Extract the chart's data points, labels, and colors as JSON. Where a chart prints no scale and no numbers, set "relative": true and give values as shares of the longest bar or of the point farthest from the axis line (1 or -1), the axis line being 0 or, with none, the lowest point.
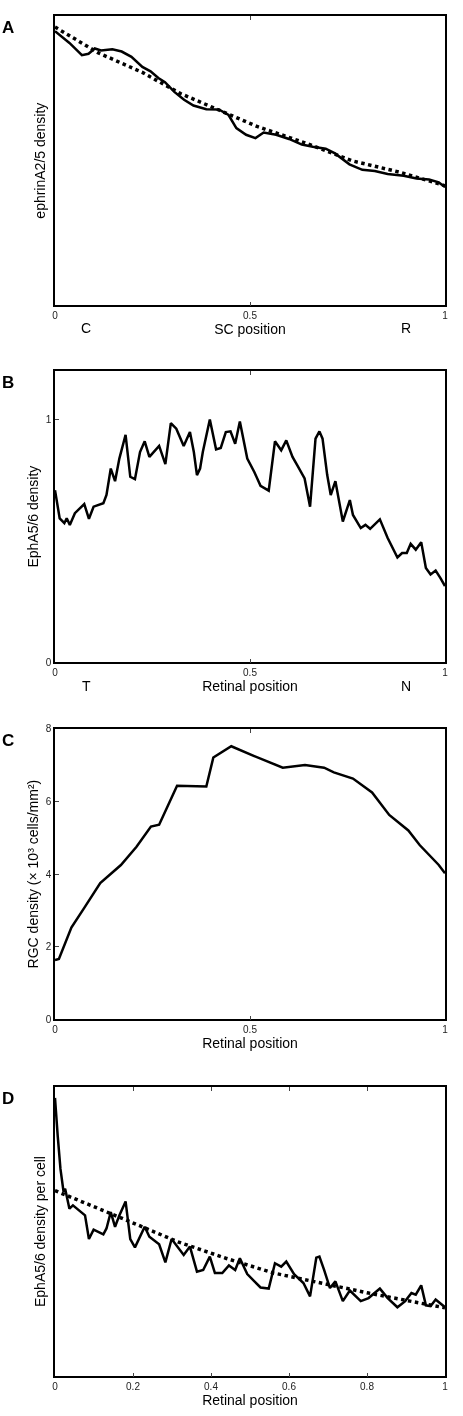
{
  "chart_data": [
    {
      "type": "line",
      "title": "A",
      "xlabel": "SC position",
      "ylabel": "ephrinA2/5 density",
      "relative": true,
      "xlim": [
        0,
        1
      ],
      "xticks": [
        0,
        0.5,
        1
      ],
      "annotations": [
        "C",
        "R"
      ],
      "series": [
        {
          "color": "#000000",
          "line_style": "solid",
          "x": [
            0,
            0.037,
            0.069,
            0.086,
            0.102,
            0.118,
            0.147,
            0.171,
            0.196,
            0.224,
            0.245,
            0.265,
            0.282,
            0.306,
            0.331,
            0.355,
            0.388,
            0.42,
            0.445,
            0.465,
            0.49,
            0.514,
            0.535,
            0.567,
            0.6,
            0.633,
            0.661,
            0.694,
            0.718,
            0.755,
            0.788,
            0.82,
            0.853,
            0.894,
            0.927,
            0.959,
            0.984,
            1.0
          ],
          "values": [
            0.985,
            0.943,
            0.899,
            0.904,
            0.923,
            0.916,
            0.92,
            0.912,
            0.893,
            0.857,
            0.841,
            0.817,
            0.802,
            0.767,
            0.739,
            0.718,
            0.705,
            0.704,
            0.684,
            0.637,
            0.613,
            0.601,
            0.621,
            0.613,
            0.598,
            0.578,
            0.57,
            0.563,
            0.546,
            0.507,
            0.487,
            0.483,
            0.472,
            0.466,
            0.456,
            0.452,
            0.442,
            0.425
          ]
        },
        {
          "color": "#000000",
          "line_style": "dotted",
          "x": [
            0,
            0.11,
            0.224,
            0.322,
            0.42,
            0.518,
            0.641,
            0.763,
            0.886,
            1.0
          ],
          "values": [
            1.0,
            0.908,
            0.837,
            0.761,
            0.702,
            0.643,
            0.584,
            0.519,
            0.478,
            0.43
          ]
        }
      ]
    },
    {
      "type": "line",
      "title": "B",
      "xlabel": "Retinal position",
      "ylabel": "EphA5/6 density",
      "xlim": [
        0,
        1
      ],
      "xticks": [
        0,
        0.5,
        1
      ],
      "ylim": [
        0,
        1.2
      ],
      "yticks": [
        0,
        1
      ],
      "annotations": [
        "T",
        "N"
      ],
      "series": [
        {
          "color": "#000000",
          "line_style": "solid",
          "x": [
            0,
            0.012,
            0.024,
            0.03,
            0.038,
            0.051,
            0.075,
            0.087,
            0.099,
            0.124,
            0.132,
            0.143,
            0.154,
            0.165,
            0.181,
            0.193,
            0.205,
            0.218,
            0.23,
            0.242,
            0.267,
            0.283,
            0.297,
            0.311,
            0.33,
            0.346,
            0.356,
            0.364,
            0.372,
            0.379,
            0.397,
            0.413,
            0.425,
            0.438,
            0.45,
            0.462,
            0.474,
            0.493,
            0.511,
            0.527,
            0.548,
            0.564,
            0.58,
            0.593,
            0.609,
            0.621,
            0.64,
            0.654,
            0.668,
            0.678,
            0.686,
            0.698,
            0.707,
            0.719,
            0.738,
            0.756,
            0.764,
            0.784,
            0.796,
            0.808,
            0.833,
            0.853,
            0.878,
            0.89,
            0.902,
            0.912,
            0.925,
            0.939,
            0.951,
            0.963,
            0.976,
            0.988,
            1.0
          ],
          "values": [
            0.709,
            0.593,
            0.573,
            0.593,
            0.566,
            0.614,
            0.652,
            0.591,
            0.641,
            0.655,
            0.689,
            0.798,
            0.746,
            0.839,
            0.937,
            0.764,
            0.754,
            0.866,
            0.91,
            0.846,
            0.891,
            0.816,
            0.985,
            0.962,
            0.891,
            0.948,
            0.866,
            0.771,
            0.798,
            0.866,
            1.0,
            0.877,
            0.883,
            0.948,
            0.951,
            0.9,
            0.992,
            0.839,
            0.784,
            0.727,
            0.707,
            0.91,
            0.873,
            0.914,
            0.846,
            0.812,
            0.757,
            0.641,
            0.921,
            0.951,
            0.921,
            0.771,
            0.689,
            0.746,
            0.58,
            0.668,
            0.607,
            0.553,
            0.566,
            0.55,
            0.589,
            0.512,
            0.432,
            0.45,
            0.45,
            0.488,
            0.464,
            0.495,
            0.389,
            0.362,
            0.378,
            0.348,
            0.314
          ]
        }
      ]
    },
    {
      "type": "line",
      "title": "C",
      "xlabel": "Retinal position",
      "ylabel": "RGC density (× 10³ cells/mm²)",
      "xlim": [
        0,
        1
      ],
      "xticks": [
        0,
        0.5,
        1
      ],
      "ylim": [
        0,
        8
      ],
      "yticks": [
        0,
        2,
        4,
        6,
        8
      ],
      "series": [
        {
          "color": "#000000",
          "line_style": "solid",
          "x": [
            0,
            0.01,
            0.042,
            0.075,
            0.116,
            0.169,
            0.209,
            0.246,
            0.267,
            0.313,
            0.388,
            0.406,
            0.452,
            0.511,
            0.584,
            0.641,
            0.69,
            0.715,
            0.764,
            0.813,
            0.857,
            0.906,
            0.935,
            0.984,
            1.0
          ],
          "values": [
            1.63,
            1.66,
            2.53,
            3.07,
            3.75,
            4.25,
            4.75,
            5.31,
            5.36,
            6.43,
            6.41,
            7.21,
            7.52,
            7.25,
            6.93,
            7.0,
            6.93,
            6.8,
            6.63,
            6.25,
            5.63,
            5.2,
            4.8,
            4.25,
            4.02
          ]
        }
      ]
    },
    {
      "type": "line",
      "title": "D",
      "xlabel": "Retinal position",
      "ylabel": "EphA5/6 density per cell",
      "relative": true,
      "xlim": [
        0,
        1
      ],
      "xticks": [
        0,
        0.2,
        0.4,
        0.6,
        0.8,
        1
      ],
      "series": [
        {
          "color": "#000000",
          "line_style": "solid",
          "x": [
            0,
            0.007,
            0.014,
            0.022,
            0.026,
            0.037,
            0.046,
            0.077,
            0.087,
            0.099,
            0.124,
            0.132,
            0.143,
            0.154,
            0.165,
            0.181,
            0.193,
            0.205,
            0.23,
            0.242,
            0.267,
            0.283,
            0.299,
            0.33,
            0.346,
            0.364,
            0.38,
            0.397,
            0.41,
            0.429,
            0.446,
            0.462,
            0.474,
            0.493,
            0.527,
            0.548,
            0.564,
            0.58,
            0.593,
            0.613,
            0.637,
            0.654,
            0.67,
            0.678,
            0.69,
            0.705,
            0.719,
            0.738,
            0.756,
            0.784,
            0.804,
            0.833,
            0.853,
            0.878,
            0.898,
            0.914,
            0.925,
            0.939,
            0.951,
            0.963,
            0.976,
            1.0
          ],
          "values": [
            1.0,
            0.863,
            0.745,
            0.662,
            0.674,
            0.602,
            0.614,
            0.578,
            0.493,
            0.527,
            0.51,
            0.531,
            0.59,
            0.537,
            0.578,
            0.628,
            0.493,
            0.463,
            0.537,
            0.501,
            0.474,
            0.409,
            0.493,
            0.436,
            0.466,
            0.376,
            0.382,
            0.43,
            0.371,
            0.371,
            0.398,
            0.382,
            0.424,
            0.367,
            0.319,
            0.315,
            0.406,
            0.394,
            0.412,
            0.367,
            0.335,
            0.287,
            0.426,
            0.43,
            0.382,
            0.317,
            0.341,
            0.27,
            0.308,
            0.27,
            0.281,
            0.315,
            0.281,
            0.248,
            0.27,
            0.299,
            0.293,
            0.327,
            0.255,
            0.252,
            0.276,
            0.248
          ]
        },
        {
          "color": "#000000",
          "line_style": "dotted",
          "x": [
            0,
            0.071,
            0.193,
            0.315,
            0.438,
            0.56,
            0.682,
            0.804,
            0.91,
            1.0
          ],
          "values": [
            0.667,
            0.626,
            0.555,
            0.483,
            0.424,
            0.371,
            0.335,
            0.299,
            0.27,
            0.246
          ]
        }
      ]
    }
  ]
}
